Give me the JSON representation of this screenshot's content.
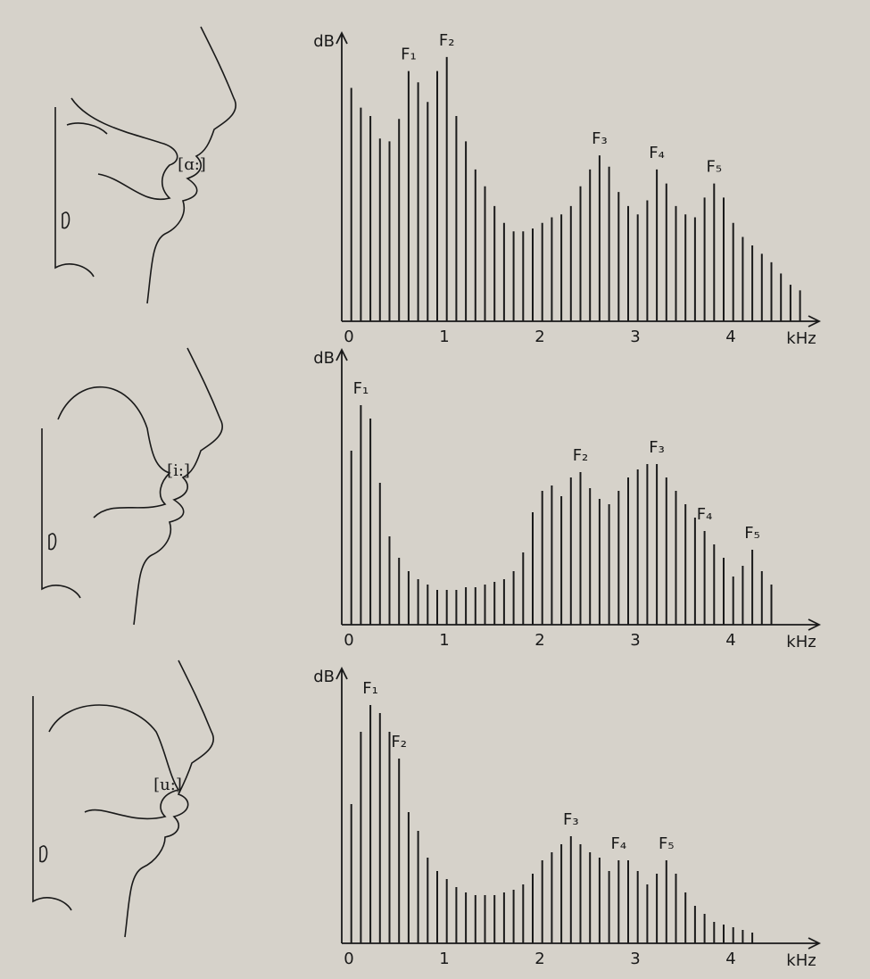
{
  "chart_data": [
    {
      "type": "bar",
      "label": "[ɑ:]",
      "y_axis_label": "dB",
      "x_axis_label": "kHz",
      "color": "#1a1a1a",
      "xlim": [
        0,
        5
      ],
      "xticks": [
        0,
        1,
        2,
        3,
        4
      ],
      "ylim": [
        0,
        100
      ],
      "x": [
        0.1,
        0.2,
        0.3,
        0.4,
        0.5,
        0.6,
        0.7,
        0.8,
        0.9,
        1.0,
        1.1,
        1.2,
        1.3,
        1.4,
        1.5,
        1.6,
        1.7,
        1.8,
        1.9,
        2.0,
        2.1,
        2.2,
        2.3,
        2.4,
        2.5,
        2.6,
        2.7,
        2.8,
        2.9,
        3.0,
        3.1,
        3.2,
        3.3,
        3.4,
        3.5,
        3.6,
        3.7,
        3.8,
        3.9,
        4.0,
        4.1,
        4.2,
        4.3,
        4.4,
        4.5,
        4.6,
        4.7,
        4.8
      ],
      "values": [
        83,
        76,
        73,
        65,
        64,
        72,
        89,
        85,
        78,
        89,
        94,
        73,
        64,
        54,
        48,
        41,
        35,
        32,
        32,
        33,
        35,
        37,
        38,
        41,
        48,
        54,
        59,
        55,
        46,
        41,
        38,
        43,
        54,
        49,
        41,
        38,
        37,
        44,
        49,
        44,
        35,
        30,
        27,
        24,
        21,
        17,
        13,
        11
      ],
      "annotations": [
        {
          "text": "F₁",
          "x": 0.7
        },
        {
          "text": "F₂",
          "x": 1.1
        },
        {
          "text": "F₃",
          "x": 2.7
        },
        {
          "text": "F₄",
          "x": 3.3
        },
        {
          "text": "F₅",
          "x": 3.9
        }
      ]
    },
    {
      "type": "bar",
      "label": "[i:]",
      "y_axis_label": "dB",
      "x_axis_label": "kHz",
      "color": "#1a1a1a",
      "xlim": [
        0,
        5
      ],
      "xticks": [
        0,
        1,
        2,
        3,
        4
      ],
      "ylim": [
        0,
        100
      ],
      "x": [
        0.1,
        0.2,
        0.3,
        0.4,
        0.5,
        0.6,
        0.7,
        0.8,
        0.9,
        1.0,
        1.1,
        1.2,
        1.3,
        1.4,
        1.5,
        1.6,
        1.7,
        1.8,
        1.9,
        2.0,
        2.1,
        2.2,
        2.3,
        2.4,
        2.5,
        2.6,
        2.7,
        2.8,
        2.9,
        3.0,
        3.1,
        3.2,
        3.3,
        3.4,
        3.5,
        3.6,
        3.7,
        3.8,
        3.9,
        4.0,
        4.1,
        4.2,
        4.3,
        4.4,
        4.5
      ],
      "values": [
        65,
        82,
        77,
        53,
        33,
        25,
        20,
        17,
        15,
        13,
        13,
        13,
        14,
        14,
        15,
        16,
        17,
        20,
        27,
        42,
        50,
        52,
        48,
        55,
        57,
        51,
        47,
        45,
        50,
        55,
        58,
        60,
        60,
        55,
        50,
        45,
        40,
        35,
        30,
        25,
        18,
        22,
        28,
        20,
        15
      ],
      "annotations": [
        {
          "text": "F₁",
          "x": 0.2
        },
        {
          "text": "F₂",
          "x": 2.5
        },
        {
          "text": "F₃",
          "x": 3.3
        },
        {
          "text": "F₄",
          "x": 3.8
        },
        {
          "text": "F₅",
          "x": 4.3
        }
      ]
    },
    {
      "type": "bar",
      "label": "[u:]",
      "y_axis_label": "dB",
      "x_axis_label": "kHz",
      "color": "#1a1a1a",
      "xlim": [
        0,
        5
      ],
      "xticks": [
        0,
        1,
        2,
        3,
        4
      ],
      "ylim": [
        0,
        100
      ],
      "x": [
        0.1,
        0.2,
        0.3,
        0.4,
        0.5,
        0.6,
        0.7,
        0.8,
        0.9,
        1.0,
        1.1,
        1.2,
        1.3,
        1.4,
        1.5,
        1.6,
        1.7,
        1.8,
        1.9,
        2.0,
        2.1,
        2.2,
        2.3,
        2.4,
        2.5,
        2.6,
        2.7,
        2.8,
        2.9,
        3.0,
        3.1,
        3.2,
        3.3,
        3.4,
        3.5,
        3.6,
        3.7,
        3.8,
        3.9,
        4.0,
        4.1,
        4.2,
        4.3
      ],
      "values": [
        52,
        79,
        89,
        86,
        79,
        69,
        49,
        42,
        32,
        27,
        24,
        21,
        19,
        18,
        18,
        18,
        19,
        20,
        22,
        26,
        31,
        34,
        37,
        40,
        37,
        34,
        32,
        27,
        31,
        31,
        27,
        22,
        26,
        31,
        26,
        19,
        14,
        11,
        8,
        7,
        6,
        5,
        4
      ],
      "annotations": [
        {
          "text": "F₁",
          "x": 0.3
        },
        {
          "text": "F₂",
          "x": 0.6
        },
        {
          "text": "F₃",
          "x": 2.4
        },
        {
          "text": "F₄",
          "x": 2.9
        },
        {
          "text": "F₅",
          "x": 3.4
        }
      ]
    }
  ]
}
